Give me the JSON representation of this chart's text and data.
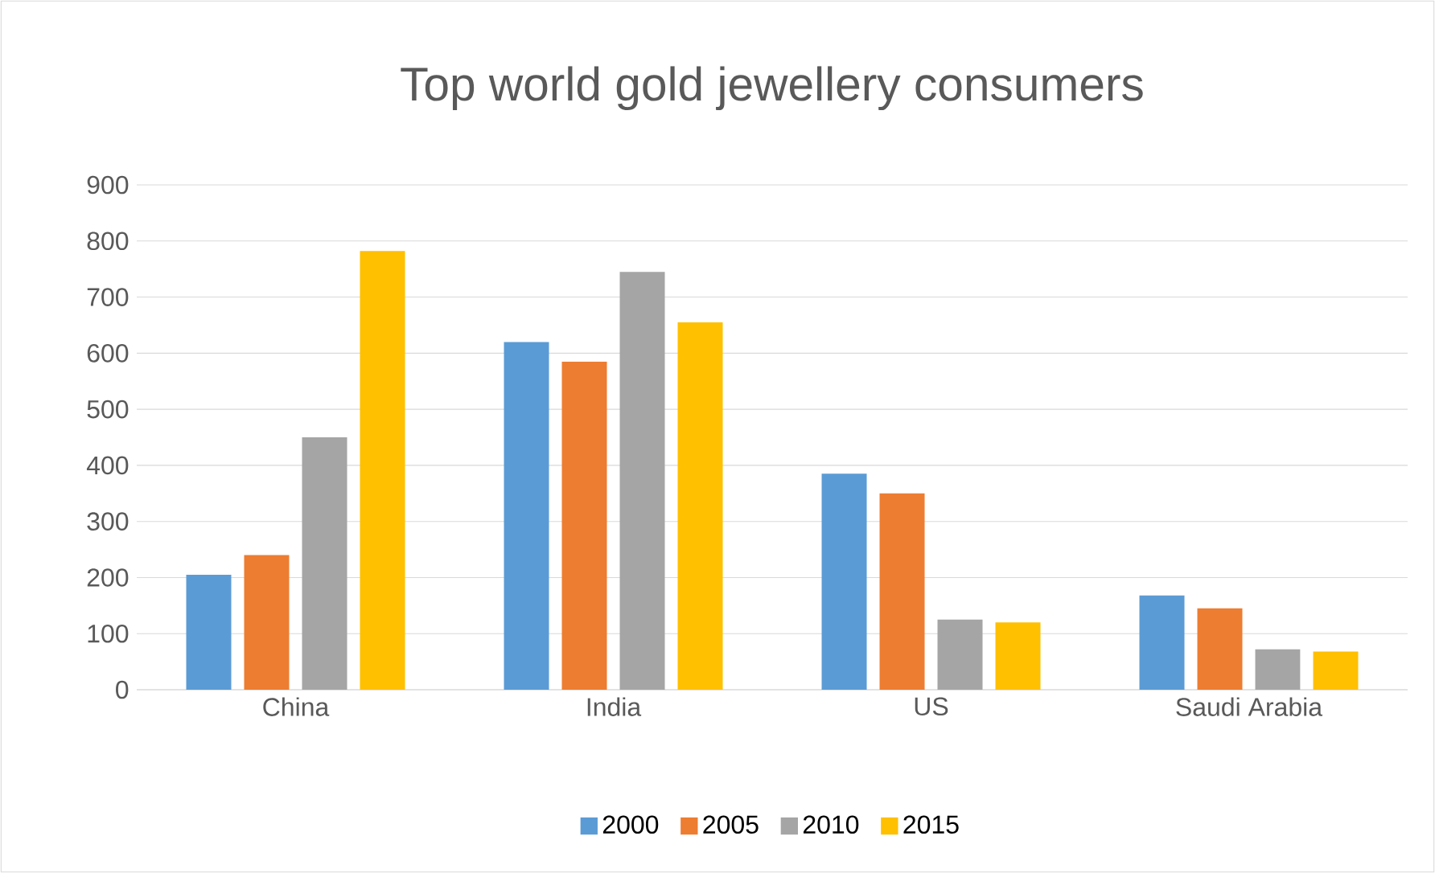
{
  "chart_data": {
    "type": "bar",
    "title": "Top world gold jewellery consumers",
    "categories": [
      "China",
      "India",
      "US",
      "Saudi Arabia"
    ],
    "series": [
      {
        "name": "2000",
        "color": "#5b9bd5",
        "values": [
          205,
          620,
          385,
          168
        ]
      },
      {
        "name": "2005",
        "color": "#ed7d31",
        "values": [
          240,
          585,
          350,
          145
        ]
      },
      {
        "name": "2010",
        "color": "#a5a5a5",
        "values": [
          450,
          745,
          125,
          72
        ]
      },
      {
        "name": "2015",
        "color": "#ffc000",
        "values": [
          782,
          655,
          120,
          68
        ]
      }
    ],
    "ylim": [
      0,
      900
    ],
    "yticks": [
      0,
      100,
      200,
      300,
      400,
      500,
      600,
      700,
      800,
      900
    ],
    "grid": "y",
    "legend": "bottom"
  }
}
